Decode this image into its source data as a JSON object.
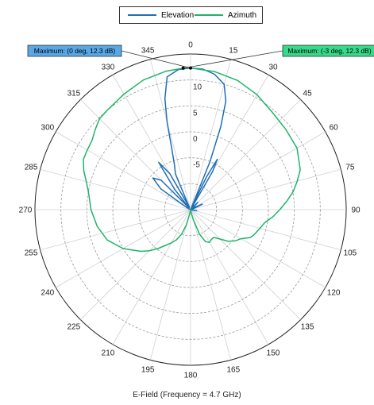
{
  "chart_data": {
    "type": "polar",
    "title": "",
    "caption": "E-Field (Frequency = 4.7 GHz)",
    "angle_unit": "deg",
    "angle_ticks": [
      0,
      15,
      30,
      45,
      60,
      75,
      90,
      105,
      120,
      135,
      150,
      165,
      180,
      195,
      210,
      225,
      240,
      255,
      270,
      285,
      300,
      315,
      330,
      345
    ],
    "angle_zero": "top",
    "angle_direction": "clockwise",
    "radial_unit": "dB",
    "radial_range": [
      -15,
      15
    ],
    "radial_rings": [
      -10,
      -5,
      0,
      5,
      10,
      15
    ],
    "radial_tick_labels": [
      -5,
      0,
      5,
      10
    ],
    "legend_position": "top-center",
    "series": [
      {
        "name": "Elevation",
        "color": "#1f6fb5",
        "points": [
          [
            0,
            12.3
          ],
          [
            5,
            12.2
          ],
          [
            10,
            11.5
          ],
          [
            15,
            10.0
          ],
          [
            18,
            7.0
          ],
          [
            20,
            2.0
          ],
          [
            22,
            -5.0
          ],
          [
            24,
            -14.5
          ],
          [
            26,
            -8.0
          ],
          [
            28,
            -4.0
          ],
          [
            30,
            -6.5
          ],
          [
            32,
            -14.5
          ],
          [
            40,
            -15.0
          ],
          [
            45,
            -13.0
          ],
          [
            55,
            -14.5
          ],
          [
            65,
            -12.5
          ],
          [
            72,
            -14.5
          ],
          [
            90,
            -15.0
          ],
          [
            100,
            -13.8
          ],
          [
            110,
            -15.0
          ],
          [
            180,
            -15.0
          ],
          [
            270,
            -15.0
          ],
          [
            300,
            -14.0
          ],
          [
            305,
            -8.0
          ],
          [
            310,
            -5.5
          ],
          [
            315,
            -7.0
          ],
          [
            318,
            -14.5
          ],
          [
            322,
            -10.0
          ],
          [
            326,
            -4.0
          ],
          [
            330,
            -7.0
          ],
          [
            333,
            -14.5
          ],
          [
            337,
            -7.5
          ],
          [
            340,
            -6.0
          ],
          [
            343,
            -2.5
          ],
          [
            345,
            2.5
          ],
          [
            347,
            7.0
          ],
          [
            350,
            11.0
          ],
          [
            355,
            12.1
          ],
          [
            360,
            12.3
          ]
        ]
      },
      {
        "name": "Azimuth",
        "color": "#1fb36b",
        "points": [
          [
            0,
            12.3
          ],
          [
            10,
            12.0
          ],
          [
            20,
            11.5
          ],
          [
            30,
            10.6
          ],
          [
            40,
            9.5
          ],
          [
            50,
            9.0
          ],
          [
            60,
            8.7
          ],
          [
            70,
            7.5
          ],
          [
            75,
            6.3
          ],
          [
            80,
            5.1
          ],
          [
            85,
            3.6
          ],
          [
            90,
            2.2
          ],
          [
            95,
            0.9
          ],
          [
            100,
            -0.5
          ],
          [
            103,
            -0.9
          ],
          [
            108,
            -1.5
          ],
          [
            112,
            -1.9
          ],
          [
            115,
            -2.3
          ],
          [
            120,
            -3.8
          ],
          [
            125,
            -4.5
          ],
          [
            130,
            -5.5
          ],
          [
            135,
            -7.0
          ],
          [
            140,
            -8.0
          ],
          [
            145,
            -8.0
          ],
          [
            150,
            -7.7
          ],
          [
            155,
            -8.2
          ],
          [
            160,
            -10.0
          ],
          [
            165,
            -13.0
          ],
          [
            170,
            -14.5
          ],
          [
            175,
            -15.0
          ],
          [
            180,
            -15.0
          ],
          [
            190,
            -14.5
          ],
          [
            195,
            -12.0
          ],
          [
            200,
            -10.0
          ],
          [
            205,
            -8.6
          ],
          [
            210,
            -7.6
          ],
          [
            215,
            -6.6
          ],
          [
            220,
            -5.2
          ],
          [
            225,
            -3.8
          ],
          [
            230,
            -2.5
          ],
          [
            240,
            0.0
          ],
          [
            250,
            2.1
          ],
          [
            260,
            3.3
          ],
          [
            270,
            4.2
          ],
          [
            280,
            5.0
          ],
          [
            285,
            5.8
          ],
          [
            290,
            6.9
          ],
          [
            295,
            7.8
          ],
          [
            300,
            8.0
          ],
          [
            305,
            8.2
          ],
          [
            310,
            9.0
          ],
          [
            315,
            9.8
          ],
          [
            320,
            10.0
          ],
          [
            330,
            10.7
          ],
          [
            340,
            11.6
          ],
          [
            350,
            12.1
          ],
          [
            357,
            12.3
          ],
          [
            360,
            12.3
          ]
        ]
      }
    ],
    "markers": [
      {
        "label": "Maximum: (0 deg, 12.3 dB)",
        "angle": 0,
        "value": 12.3,
        "color": "#5aa7e6",
        "side": "left"
      },
      {
        "label": "Maximum: (-3 deg, 12.3 dB)",
        "angle": -3,
        "value": 12.3,
        "color": "#37d98a",
        "side": "right"
      }
    ]
  }
}
